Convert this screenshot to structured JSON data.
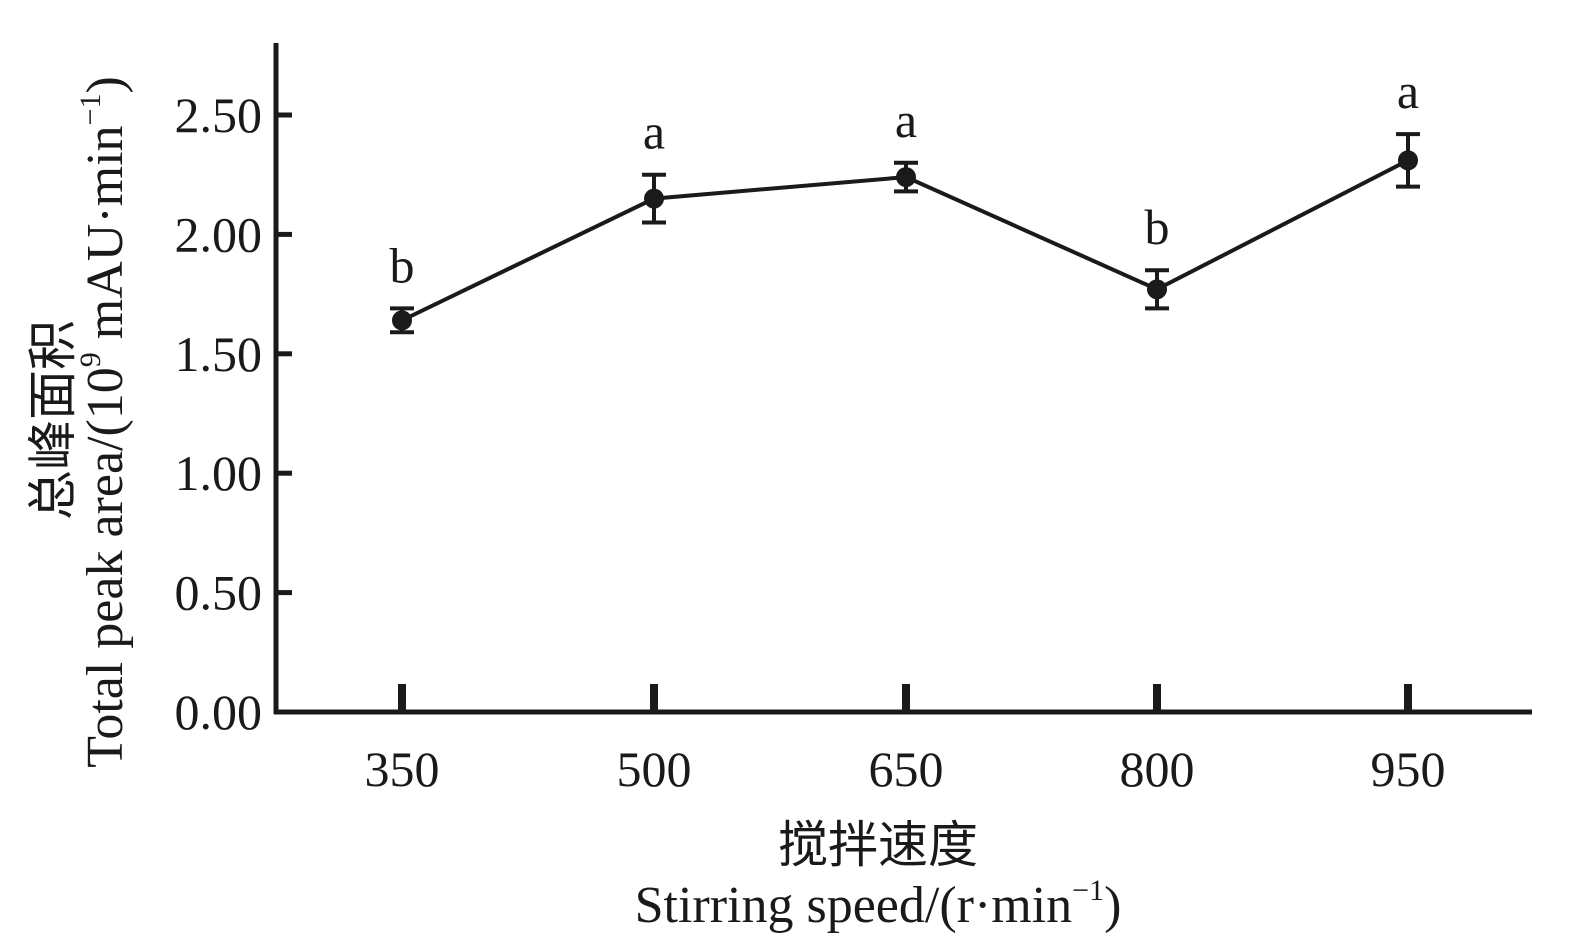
{
  "chart_data": {
    "type": "line",
    "x": [
      350,
      500,
      650,
      800,
      950
    ],
    "x_tick_labels": [
      "350",
      "500",
      "650",
      "800",
      "950"
    ],
    "y_tick_labels": [
      "0.00",
      "0.50",
      "1.00",
      "1.50",
      "2.00",
      "2.50"
    ],
    "y_ticks": [
      0,
      0.5,
      1.0,
      1.5,
      2.0,
      2.5
    ],
    "ylim": [
      0,
      2.78
    ],
    "series": [
      {
        "values": [
          1.64,
          2.15,
          2.24,
          1.77,
          2.31
        ],
        "errors": [
          0.05,
          0.1,
          0.06,
          0.08,
          0.11
        ],
        "significance": [
          "b",
          "a",
          "a",
          "b",
          "a"
        ]
      }
    ],
    "xlabel": {
      "cn": "搅拌速度",
      "en_prefix": "Stirring speed/(r·min",
      "en_sup": "−1",
      "en_suffix": ")"
    },
    "ylabel": {
      "cn": "总峰面积",
      "en_prefix": "Total peak area/(10",
      "en_sup1": "9",
      "en_mid": " mAU·min",
      "en_sup2": "−1",
      "en_suffix": ")"
    },
    "grid": false,
    "color": "#1a1a1a"
  }
}
